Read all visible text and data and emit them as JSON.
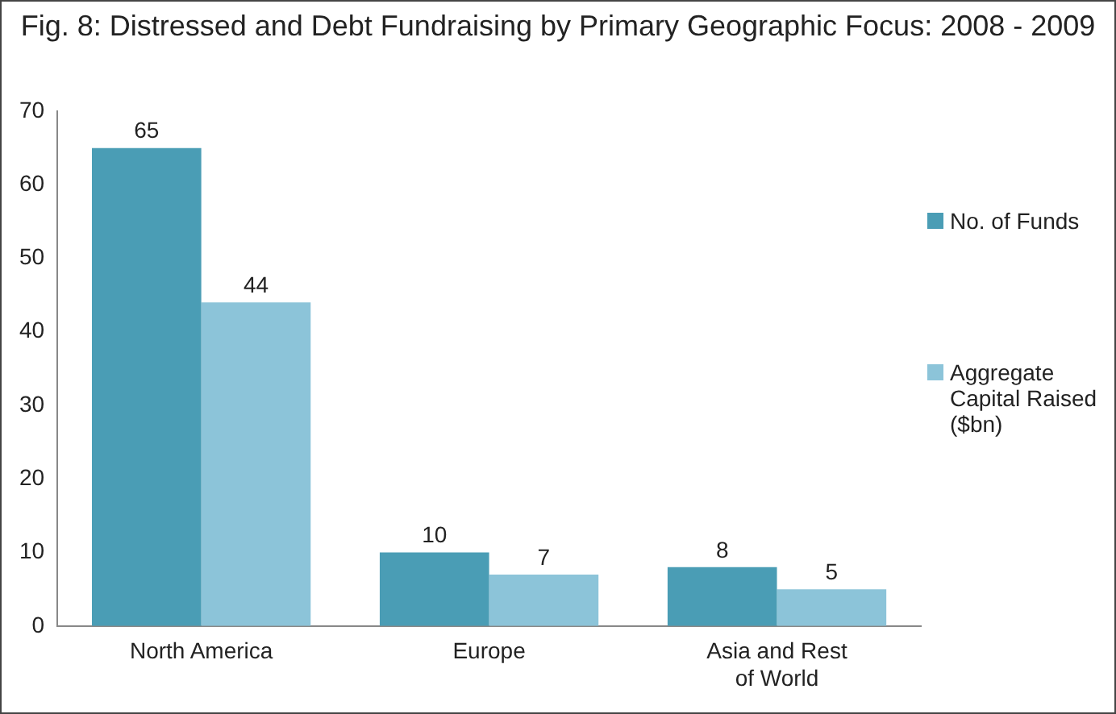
{
  "chart_data": {
    "type": "bar",
    "title": "Fig. 8: Distressed and Debt Fundraising by Primary Geographic Focus: 2008 - 2009",
    "categories": [
      "North America",
      "Europe",
      "Asia and Rest of World"
    ],
    "series": [
      {
        "name": "No. of Funds",
        "color": "#4a9db5",
        "values": [
          65,
          10,
          8
        ]
      },
      {
        "name": "Aggregate Capital Raised ($bn)",
        "color": "#8cc4d9",
        "values": [
          44,
          7,
          5
        ]
      }
    ],
    "ylim": [
      0,
      70
    ],
    "yticks": [
      0,
      10,
      20,
      30,
      40,
      50,
      60,
      70
    ],
    "grid": false,
    "legend": "right",
    "data_labels": true
  }
}
